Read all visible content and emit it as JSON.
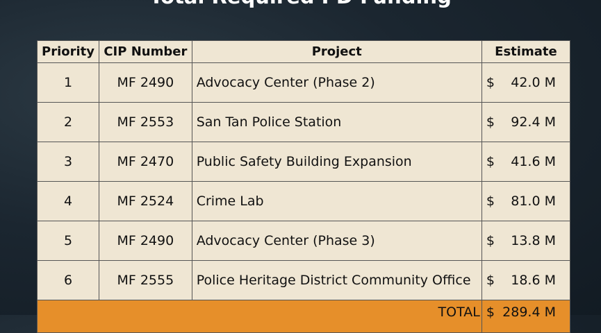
{
  "title": "Total Required PD Funding",
  "table": {
    "header": [
      "Priority",
      "CIP Number",
      "Project",
      "Estimate"
    ],
    "rows": [
      [
        "1",
        "MF 2490",
        "Advocacy Center (Phase 2)",
        "$",
        "42.0 M"
      ],
      [
        "2",
        "MF 2553",
        "San Tan Police Station",
        "$",
        "92.4 M"
      ],
      [
        "3",
        "MF 2470",
        "Public Safety Building Expansion",
        "$",
        "41.6 M"
      ],
      [
        "4",
        "MF 2524",
        "Crime Lab",
        "$",
        "81.0 M"
      ],
      [
        "5",
        "MF 2490",
        "Advocacy Center (Phase 3)",
        "$",
        "13.8 M"
      ],
      [
        "6",
        "MF 2555",
        "Police Heritage District Community Office",
        "$",
        "18.6 M"
      ]
    ],
    "total": {
      "label": "TOTAL",
      "currency": "$",
      "amount": "289.4 M"
    }
  }
}
